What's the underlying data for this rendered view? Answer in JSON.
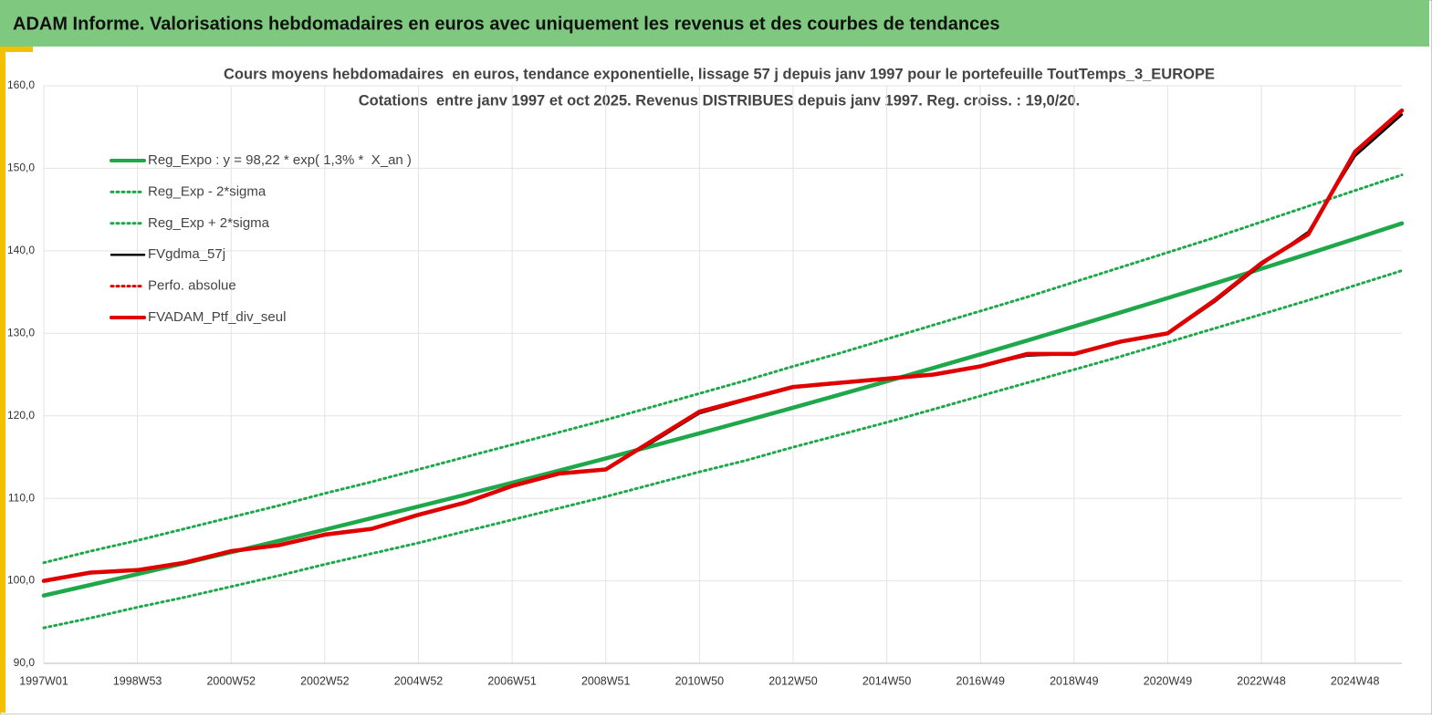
{
  "header": {
    "title": "ADAM Informe. Valorisations hebdomadaires en euros avec uniquement les revenus et des courbes de tendances"
  },
  "chart_data": {
    "type": "line",
    "title": "Cours moyens hebdomadaires  en euros, tendance exponentielle, lissage 57 j depuis janv 1997 pour le portefeuille ToutTemps_3_EUROPE",
    "subtitle": "Cotations  entre janv 1997 et oct 2025. Revenus DISTRIBUES depuis janv 1997. Reg. croiss. : 19,0/20.",
    "categories": [
      "1997W01",
      null,
      "1998W53",
      null,
      "2000W52",
      null,
      "2002W52",
      null,
      "2004W52",
      null,
      "2006W51",
      null,
      "2008W51",
      null,
      "2010W50",
      null,
      "2012W50",
      null,
      "2014W50",
      null,
      "2016W49",
      null,
      "2018W49",
      null,
      "2020W49",
      null,
      "2022W48",
      null,
      "2024W48",
      null
    ],
    "ylim": [
      90,
      160
    ],
    "yticks": [
      {
        "value": 90,
        "label": "90,0"
      },
      {
        "value": 100,
        "label": "100,0"
      },
      {
        "value": 110,
        "label": "110,0"
      },
      {
        "value": 120,
        "label": "120,0"
      },
      {
        "value": 130,
        "label": "130,0"
      },
      {
        "value": 140,
        "label": "140,0"
      },
      {
        "value": 150,
        "label": "150,0"
      },
      {
        "value": 160,
        "label": "160,0"
      }
    ],
    "grid": true,
    "legend": "top-left",
    "series": [
      {
        "name": "Reg_Expo : y = 98,22 * exp( 1,3% *  X_an )",
        "color": "#1fa84a",
        "line_style": "solid",
        "values": [
          98.22,
          99.51,
          100.81,
          102.13,
          103.47,
          104.83,
          106.2,
          107.6,
          109.01,
          110.44,
          111.89,
          113.36,
          114.84,
          116.35,
          117.88,
          119.42,
          120.99,
          122.58,
          124.18,
          125.81,
          127.46,
          129.13,
          130.83,
          132.54,
          134.28,
          136.04,
          137.83,
          139.63,
          141.47,
          143.32
        ]
      },
      {
        "name": "Reg_Exp - 2*sigma",
        "color": "#1fa84a",
        "line_style": "dotted",
        "values": [
          94.3,
          95.5,
          96.8,
          98.0,
          99.3,
          100.6,
          102.0,
          103.3,
          104.6,
          106.0,
          107.4,
          108.8,
          110.2,
          111.7,
          113.2,
          114.6,
          116.2,
          117.7,
          119.2,
          120.8,
          122.4,
          124.0,
          125.6,
          127.2,
          128.9,
          130.6,
          132.3,
          134.0,
          135.8,
          137.6
        ]
      },
      {
        "name": "Reg_Exp + 2*sigma",
        "color": "#1fa84a",
        "line_style": "dotted",
        "values": [
          102.2,
          103.6,
          104.9,
          106.3,
          107.7,
          109.1,
          110.6,
          112.0,
          113.5,
          115.0,
          116.5,
          118.0,
          119.5,
          121.1,
          122.7,
          124.3,
          126.0,
          127.6,
          129.3,
          131.0,
          132.7,
          134.4,
          136.2,
          138.0,
          139.8,
          141.6,
          143.5,
          145.4,
          147.3,
          149.2
        ]
      },
      {
        "name": "FVgdma_57j",
        "color": "#000000",
        "line_style": "solid",
        "values": [
          100.0,
          100.9,
          101.3,
          102.1,
          103.5,
          104.3,
          105.5,
          106.3,
          107.9,
          109.4,
          111.4,
          112.9,
          113.6,
          116.8,
          120.3,
          121.9,
          123.4,
          124.0,
          124.4,
          125.1,
          126.0,
          127.3,
          127.5,
          128.9,
          129.9,
          133.8,
          138.3,
          142.3,
          151.5,
          156.5
        ]
      },
      {
        "name": "Perfo. absolue",
        "color": "#e00000",
        "line_style": "dotted",
        "values": [
          100.0,
          101.0,
          101.3,
          102.2,
          103.6,
          104.3,
          105.6,
          106.3,
          108.0,
          109.5,
          111.5,
          113.0,
          113.5,
          117.0,
          120.5,
          122.0,
          123.5,
          124.0,
          124.5,
          125.0,
          126.0,
          127.5,
          127.5,
          129.0,
          130.0,
          134.0,
          138.5,
          142.0,
          152.0,
          157.0
        ]
      },
      {
        "name": "FVADAM_Ptf_div_seul",
        "color": "#e00000",
        "line_style": "solid",
        "values": [
          100.0,
          101.0,
          101.3,
          102.2,
          103.6,
          104.3,
          105.6,
          106.3,
          108.0,
          109.5,
          111.5,
          113.0,
          113.5,
          117.0,
          120.5,
          122.0,
          123.5,
          124.0,
          124.5,
          125.0,
          126.0,
          127.5,
          127.5,
          129.0,
          130.0,
          134.0,
          138.5,
          142.0,
          152.0,
          157.0
        ]
      }
    ]
  }
}
